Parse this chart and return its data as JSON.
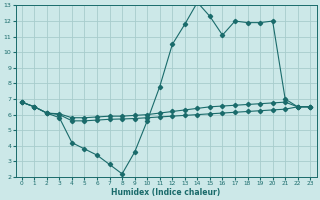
{
  "xlabel": "Humidex (Indice chaleur)",
  "bg_color": "#cce8e8",
  "grid_color": "#a8cccc",
  "line_color": "#1a6b6b",
  "xlim": [
    -0.5,
    23.5
  ],
  "ylim": [
    2,
    13
  ],
  "xticks": [
    0,
    1,
    2,
    3,
    4,
    5,
    6,
    7,
    8,
    9,
    10,
    11,
    12,
    13,
    14,
    15,
    16,
    17,
    18,
    19,
    20,
    21,
    22,
    23
  ],
  "yticks": [
    2,
    3,
    4,
    5,
    6,
    7,
    8,
    9,
    10,
    11,
    12,
    13
  ],
  "series1_x": [
    0,
    1,
    2,
    3,
    4,
    5,
    6,
    7,
    8,
    9,
    10,
    11,
    12,
    13,
    14,
    15,
    16,
    17,
    18,
    19,
    20,
    21,
    22,
    23
  ],
  "series1_y": [
    6.8,
    6.5,
    6.1,
    6.05,
    5.8,
    5.8,
    5.85,
    5.9,
    5.9,
    5.95,
    6.0,
    6.1,
    6.2,
    6.3,
    6.4,
    6.5,
    6.55,
    6.6,
    6.65,
    6.7,
    6.75,
    6.8,
    6.5,
    6.5
  ],
  "series2_x": [
    0,
    1,
    2,
    3,
    4,
    5,
    6,
    7,
    8,
    9,
    10,
    11,
    12,
    13,
    14,
    15,
    16,
    17,
    18,
    19,
    20,
    21,
    22,
    23
  ],
  "series2_y": [
    6.8,
    6.5,
    6.1,
    6.0,
    5.6,
    5.6,
    5.65,
    5.7,
    5.72,
    5.75,
    5.8,
    5.85,
    5.9,
    5.95,
    6.0,
    6.05,
    6.1,
    6.15,
    6.2,
    6.25,
    6.3,
    6.35,
    6.5,
    6.5
  ],
  "series3_x": [
    0,
    1,
    2,
    3,
    4,
    5,
    6,
    7,
    8,
    9,
    10,
    11,
    12,
    13,
    14,
    15,
    16,
    17,
    18,
    19,
    20,
    21,
    22,
    23
  ],
  "series3_y": [
    6.8,
    6.5,
    6.1,
    5.8,
    4.2,
    3.8,
    3.4,
    2.8,
    2.2,
    3.6,
    5.6,
    7.8,
    10.5,
    11.8,
    13.2,
    12.3,
    11.1,
    12.0,
    11.9,
    11.9,
    12.0,
    7.0,
    6.5,
    6.5
  ],
  "marker": "D",
  "marker_size": 2.2
}
